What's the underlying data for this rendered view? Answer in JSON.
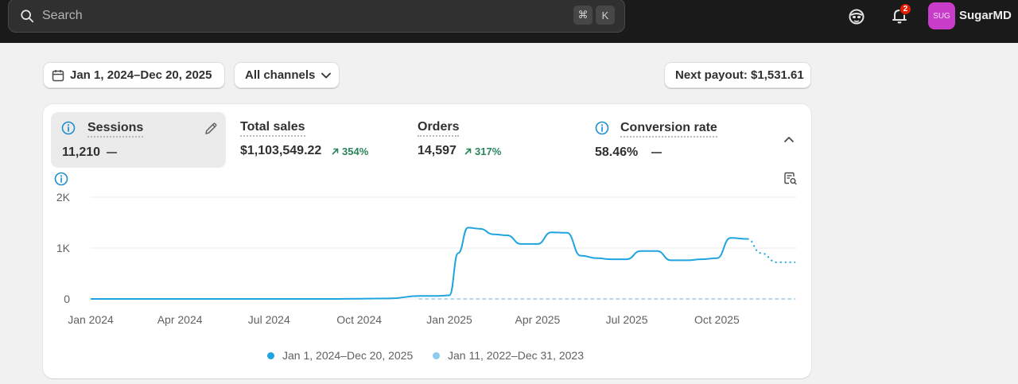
{
  "topbar": {
    "search_placeholder": "Search",
    "shortcut_cmd": "⌘",
    "shortcut_key": "K",
    "notification_count": "2",
    "avatar_initials": "SUG",
    "store_name": "SugarMD"
  },
  "filters": {
    "date_range": "Jan 1, 2024–Dec 20, 2025",
    "channel": "All channels",
    "payout": "Next payout: $1,531.61"
  },
  "metrics": {
    "sessions": {
      "title": "Sessions",
      "value": "11,210"
    },
    "total_sales": {
      "title": "Total sales",
      "value": "$1,103,549.22",
      "change": "354%"
    },
    "orders": {
      "title": "Orders",
      "value": "14,597",
      "change": "317%"
    },
    "conversion": {
      "title": "Conversion rate",
      "value": "58.46%"
    }
  },
  "colors": {
    "primary_series": "#1fa4e0",
    "comparison_series": "#8fcbea",
    "positive": "#29845a"
  },
  "chart_data": {
    "type": "line",
    "x": [
      "2024-01",
      "2024-02",
      "2024-03",
      "2024-04",
      "2024-05",
      "2024-06",
      "2024-07",
      "2024-08",
      "2024-09",
      "2024-10",
      "2024-11",
      "2024-12",
      "2024-12-20",
      "2025-01",
      "2025-01-10",
      "2025-01-20",
      "2025-02",
      "2025-02-15",
      "2025-03",
      "2025-03-15",
      "2025-04",
      "2025-04-15",
      "2025-05",
      "2025-05-15",
      "2025-06",
      "2025-06-15",
      "2025-07",
      "2025-07-15",
      "2025-08",
      "2025-08-15",
      "2025-09",
      "2025-09-15",
      "2025-10",
      "2025-10-15",
      "2025-11",
      "2025-11-15",
      "2025-12",
      "2025-12-20"
    ],
    "series": [
      {
        "name": "Jan 1, 2024–Dec 20, 2025",
        "values": [
          0,
          0,
          0,
          0,
          0,
          0,
          0,
          0,
          0,
          5,
          10,
          60,
          60,
          70,
          900,
          1400,
          1380,
          1270,
          1250,
          1080,
          1080,
          1310,
          1300,
          850,
          800,
          780,
          780,
          940,
          940,
          760,
          760,
          780,
          800,
          1200,
          1180,
          900,
          720,
          720
        ],
        "projected_from_index": 34
      },
      {
        "name": "Jan 11, 2022–Dec 31, 2023",
        "values": [
          0,
          0,
          0,
          0,
          0,
          0,
          0,
          0,
          0,
          0,
          0,
          0,
          0,
          0,
          0,
          0,
          0,
          0,
          0,
          0,
          0,
          0,
          0,
          0,
          0,
          0,
          0,
          0,
          0,
          0,
          0,
          0,
          0,
          0,
          0,
          0,
          0,
          0
        ],
        "style": "dashed"
      }
    ],
    "tick_labels": [
      "Jan 2024",
      "Apr 2024",
      "Jul 2024",
      "Oct 2024",
      "Jan 2025",
      "Apr 2025",
      "Jul 2025",
      "Oct 2025"
    ],
    "y_ticks": [
      "0",
      "1K",
      "2K"
    ],
    "ylim": [
      0,
      2000
    ],
    "grid": true,
    "legend": "bottom-center"
  }
}
